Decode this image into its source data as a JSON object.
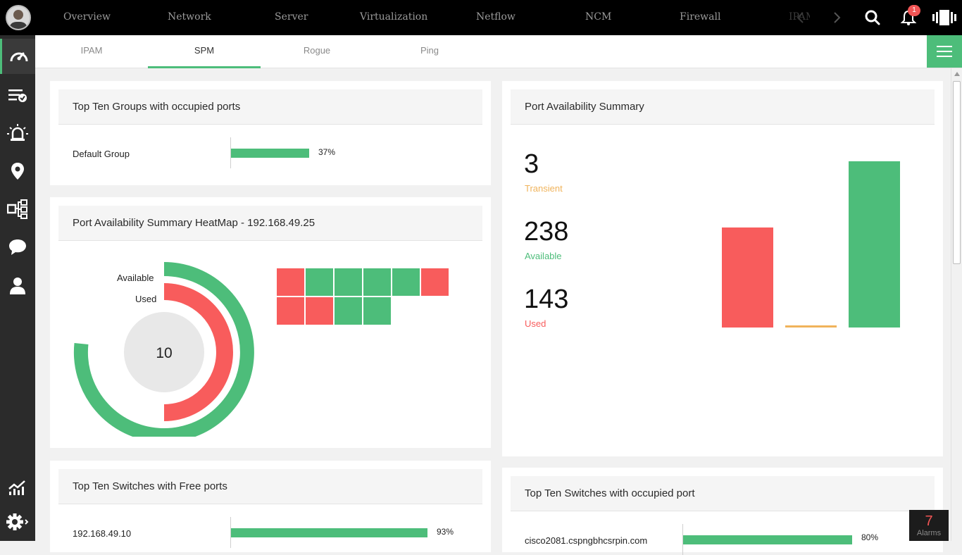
{
  "topnav": {
    "items": [
      "Overview",
      "Network",
      "Server",
      "Virtualization",
      "Netflow",
      "NCM",
      "Firewall",
      "IPAM"
    ],
    "notification_count": "1"
  },
  "sidebar": {
    "icons": [
      "dashboard-icon",
      "checklist-icon",
      "alarm-icon",
      "map-pin-icon",
      "workflow-icon",
      "chat-icon",
      "user-icon",
      "reports-icon",
      "settings-icon"
    ]
  },
  "subtabs": [
    "IPAM",
    "SPM",
    "Rogue",
    "Ping"
  ],
  "top_groups": {
    "title": "Top Ten Groups with occupied ports",
    "rows": [
      {
        "label": "Default Group",
        "value": 37,
        "pct": "37%"
      }
    ]
  },
  "heatmap": {
    "title": "Port Availability Summary HeatMap - 192.168.49.25",
    "legend_available": "Available",
    "legend_used": "Used",
    "center_value": "10",
    "cells": [
      "used",
      "available",
      "available",
      "available",
      "available",
      "used",
      "used",
      "used",
      "available",
      "available"
    ],
    "colors": {
      "used": "#f85c5c",
      "available": "#4dbd7a"
    }
  },
  "availability": {
    "title": "Port Availability Summary",
    "stats": [
      {
        "value": "3",
        "label": "Transient",
        "color": "#f0b35b"
      },
      {
        "value": "238",
        "label": "Available",
        "color": "#4dbd7a"
      },
      {
        "value": "143",
        "label": "Used",
        "color": "#f85c5c"
      }
    ]
  },
  "chart_data": {
    "type": "bar",
    "title": "Port Availability Summary",
    "categories": [
      "Used",
      "Transient",
      "Available"
    ],
    "values": [
      143,
      3,
      238
    ],
    "colors": [
      "#f85c5c",
      "#f0b35b",
      "#4dbd7a"
    ],
    "ylim": [
      0,
      250
    ]
  },
  "top_free": {
    "title": "Top Ten Switches with Free ports",
    "rows": [
      {
        "label": "192.168.49.10",
        "value": 93,
        "pct": "93%"
      }
    ]
  },
  "top_occupied": {
    "title": "Top Ten Switches with occupied port",
    "rows": [
      {
        "label": "cisco2081.cspngbhcsrpin.com",
        "value": 80,
        "pct": "80%"
      }
    ]
  },
  "alarms": {
    "count": "7",
    "label": "Alarms"
  }
}
